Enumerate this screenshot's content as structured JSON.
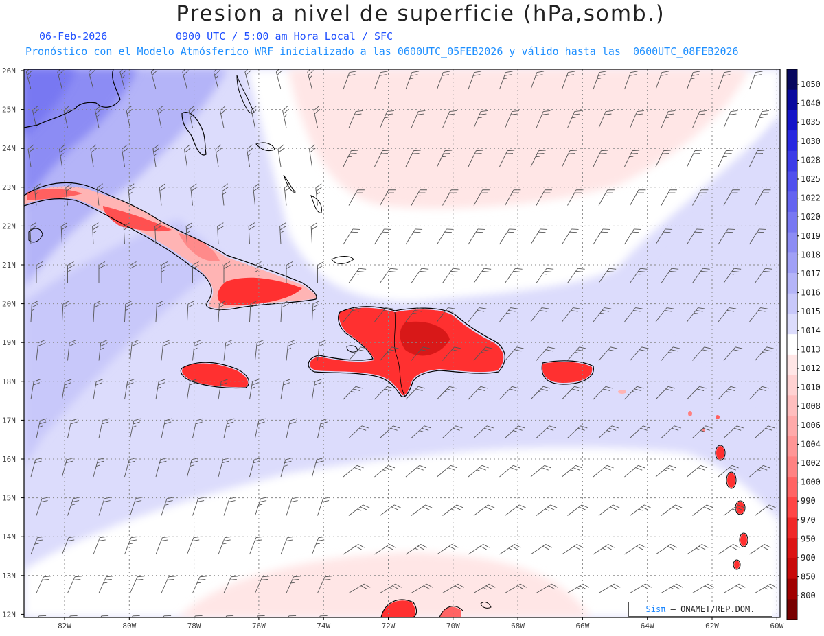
{
  "title": "Presion a nivel de superficie (hPa,somb.)",
  "subtitle": {
    "date": "06-Feb-2026",
    "time": "0900 UTC / 5:00 am Hora Local / SFC",
    "model_line": "Pronóstico con el Modelo Atmósferico WRF inicializado a las 0600UTC_05FEB2026 y válido hasta las  0600UTC_08FEB2026"
  },
  "map": {
    "lat_labels": [
      "26N",
      "25N",
      "24N",
      "23N",
      "22N",
      "21N",
      "20N",
      "19N",
      "18N",
      "17N",
      "16N",
      "15N",
      "14N",
      "13N",
      "12N"
    ],
    "lon_labels": [
      "82W",
      "80W",
      "78W",
      "76W",
      "74W",
      "72W",
      "70W",
      "68W",
      "66W",
      "64W",
      "62W",
      "60W"
    ],
    "colorbar_levels": [
      "1050",
      "1040",
      "1035",
      "1030",
      "1028",
      "1025",
      "1022",
      "1020",
      "1019",
      "1018",
      "1017",
      "1016",
      "1015",
      "1014",
      "1013",
      "1012",
      "1010",
      "1008",
      "1006",
      "1004",
      "1002",
      "1000",
      "990",
      "970",
      "950",
      "900",
      "850",
      "800"
    ],
    "colorbar_colors": [
      "#08085e",
      "#0a0a9e",
      "#1414c8",
      "#2828e0",
      "#3c3ce8",
      "#5050ee",
      "#6464f0",
      "#7878f2",
      "#8c8cf4",
      "#a0a0f6",
      "#b4b4f8",
      "#c8c8fa",
      "#dcdcfc",
      "#ffffff",
      "#ffe6e6",
      "#ffd2d2",
      "#ffbebe",
      "#ffaaaa",
      "#ff9696",
      "#ff8282",
      "#ff6464",
      "#ff4646",
      "#f02828",
      "#dc1414",
      "#c80a0a",
      "#a00000",
      "#780000"
    ]
  },
  "credit": {
    "brand": "Sisπ",
    "text": "– ONAMET/REP.DOM."
  }
}
